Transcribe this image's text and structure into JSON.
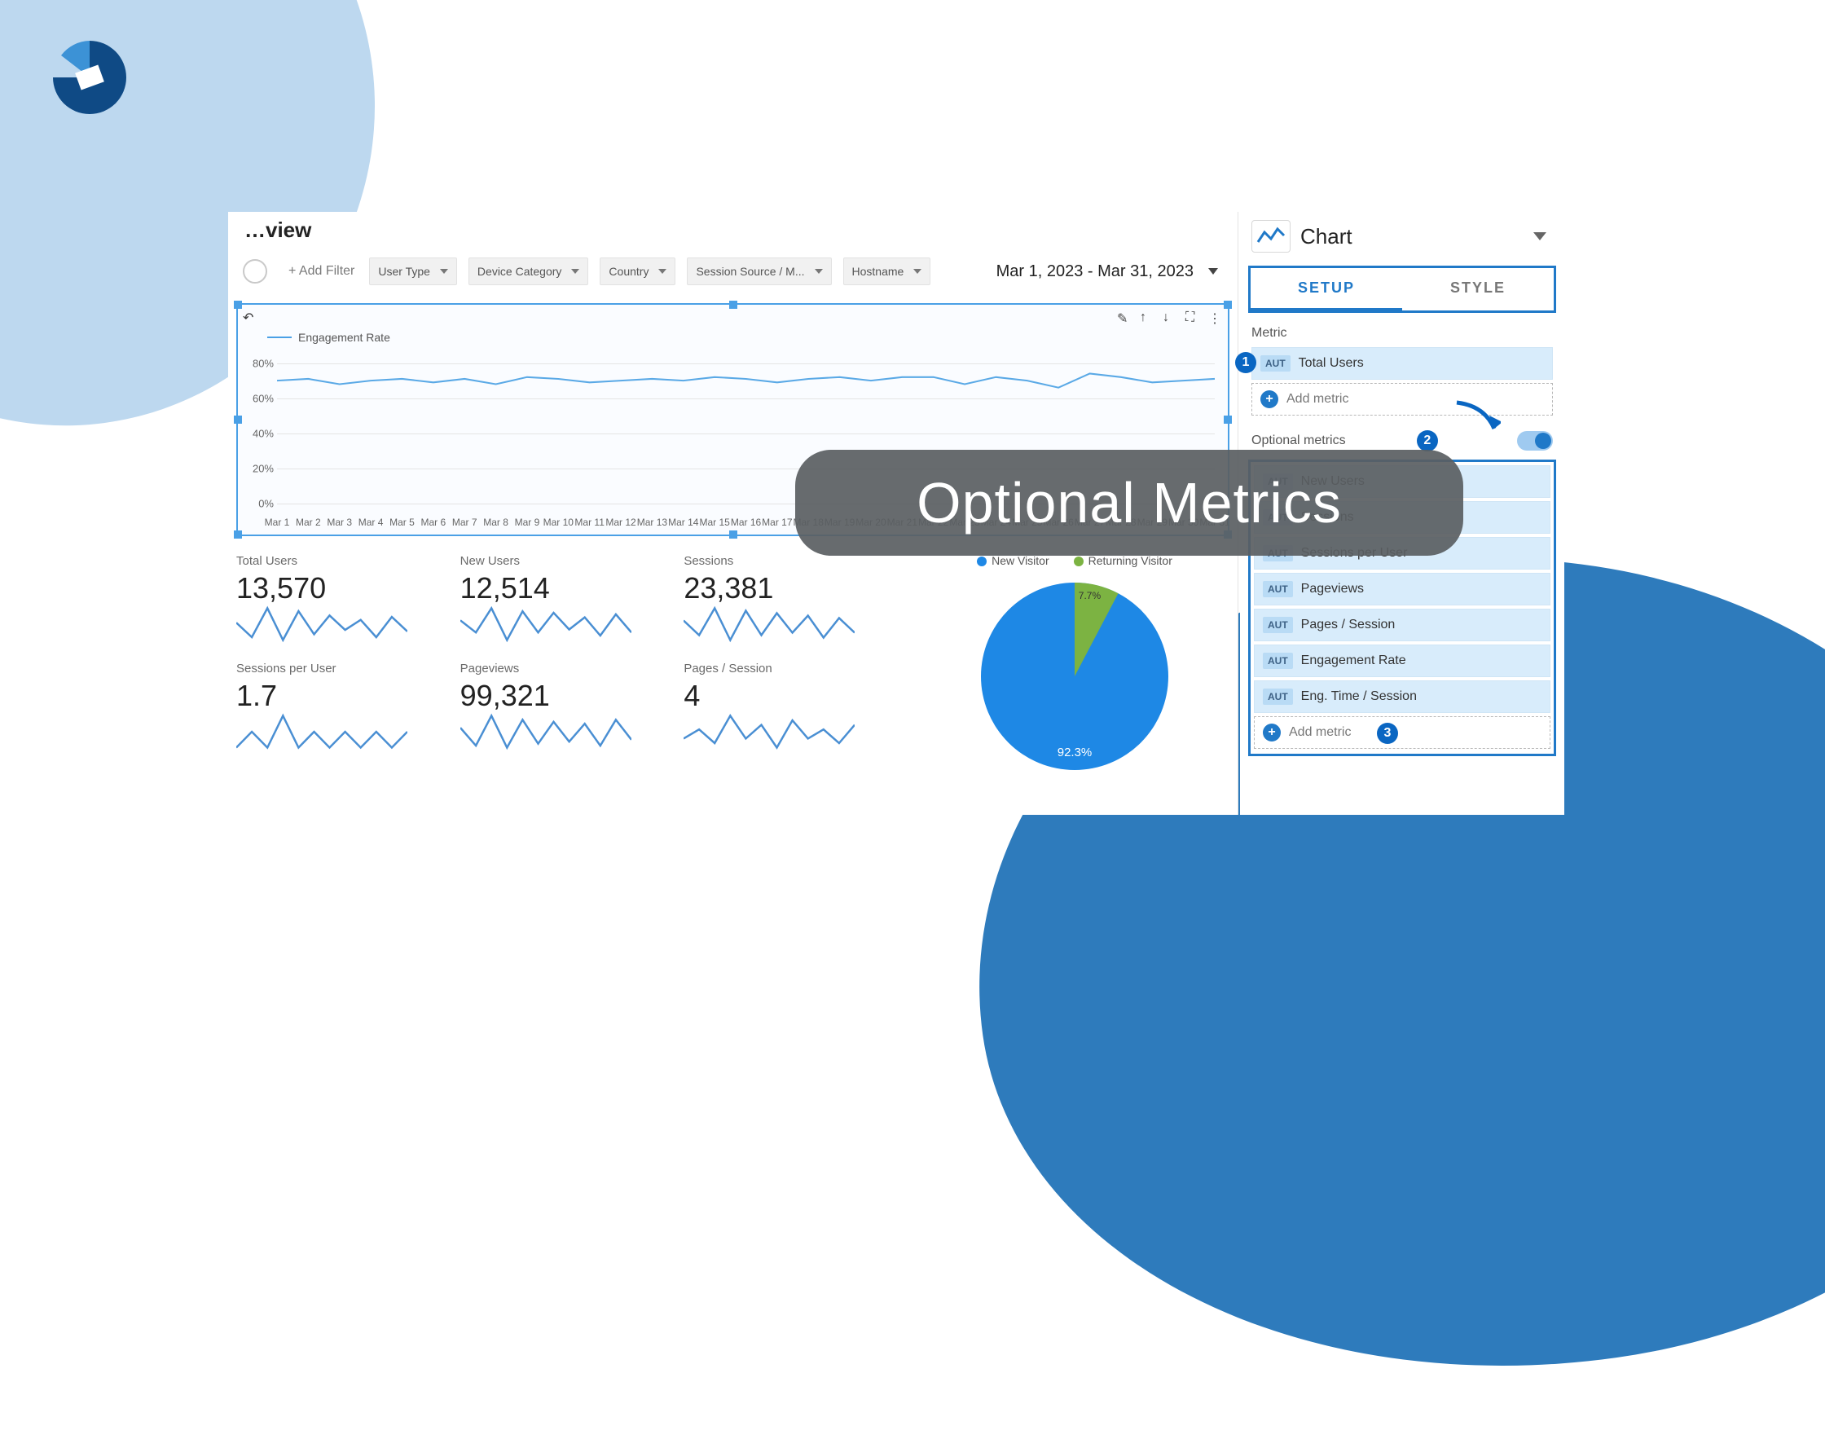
{
  "accent": "#2e7bbc",
  "accent_light": "#bdd8ef",
  "panel_highlight": "#2079c8",
  "callout_text": "Optional Metrics",
  "title_suffix": "view",
  "filters": {
    "add_filter": "+ Add Filter",
    "chips": [
      "User Type",
      "Device Category",
      "Country",
      "Session Source / M...",
      "Hostname"
    ]
  },
  "daterange_text": "Mar 1, 2023 - Mar 31, 2023",
  "engagement_chart": {
    "legend": "Engagement Rate",
    "line_color": "#5aa9e6",
    "grid_color": "#e4e4e4",
    "y_ticks": [
      0,
      20,
      40,
      60,
      80
    ],
    "y_max": 90,
    "line_width": 2,
    "x_labels": [
      "Mar 1",
      "Mar 2",
      "Mar 3",
      "Mar 4",
      "Mar 5",
      "Mar 6",
      "Mar 7",
      "Mar 8",
      "Mar 9",
      "Mar 10",
      "Mar 11",
      "Mar 12",
      "Mar 13",
      "Mar 14",
      "Mar 15",
      "Mar 16",
      "Mar 17",
      "Mar 18",
      "Mar 19",
      "Mar 20",
      "Mar 21",
      "Mar 22",
      "Mar 23",
      "Mar 24",
      "Mar 25",
      "Mar 26",
      "Mar 27",
      "Mar 28",
      "Mar 29",
      "Mar 30",
      "Mar 31"
    ],
    "values": [
      70,
      71,
      68,
      70,
      71,
      69,
      71,
      68,
      72,
      71,
      69,
      70,
      71,
      70,
      72,
      71,
      69,
      71,
      72,
      70,
      72,
      72,
      68,
      72,
      70,
      66,
      74,
      72,
      69,
      70,
      71
    ]
  },
  "kpis": [
    {
      "label": "Total Users",
      "value": "13,570",
      "spark": [
        60,
        50,
        70,
        48,
        68,
        52,
        65,
        55,
        62,
        50,
        64,
        54
      ]
    },
    {
      "label": "New Users",
      "value": "12,514",
      "spark": [
        58,
        50,
        66,
        45,
        64,
        50,
        63,
        52,
        60,
        48,
        62,
        50
      ]
    },
    {
      "label": "Sessions",
      "value": "23,381",
      "spark": [
        62,
        50,
        72,
        46,
        70,
        50,
        68,
        52,
        66,
        48,
        64,
        52
      ]
    },
    {
      "label": "Sessions per User",
      "value": "1.7",
      "spark": [
        50,
        51,
        50,
        52,
        50,
        51,
        50,
        51,
        50,
        51,
        50,
        51
      ]
    },
    {
      "label": "Pageviews",
      "value": "99,321",
      "spark": [
        58,
        40,
        70,
        38,
        66,
        42,
        64,
        44,
        62,
        40,
        66,
        46
      ]
    },
    {
      "label": "Pages / Session",
      "value": "4",
      "spark": [
        50,
        52,
        49,
        55,
        50,
        53,
        48,
        54,
        50,
        52,
        49,
        53
      ]
    }
  ],
  "pie": {
    "legend_new": "New Visitor",
    "legend_ret": "Returning Visitor",
    "color_new": "#1e88e5",
    "color_ret": "#7cb342",
    "pct_new": 92.3,
    "pct_ret": 7.7,
    "label_new": "92.3%",
    "label_ret": "7.7%"
  },
  "panel": {
    "title": "Chart",
    "tab_setup": "SETUP",
    "tab_style": "STYLE",
    "section_metric": "Metric",
    "primary_metric": "Total Users",
    "add_metric": "Add metric",
    "section_optional": "Optional metrics",
    "aut_tag": "AUT",
    "optional_list": [
      "New Users",
      "Sessions",
      "Sessions per User",
      "Pageviews",
      "Pages / Session",
      "Engagement Rate",
      "Eng. Time / Session"
    ],
    "badges": {
      "one": "1",
      "two": "2",
      "three": "3"
    }
  }
}
